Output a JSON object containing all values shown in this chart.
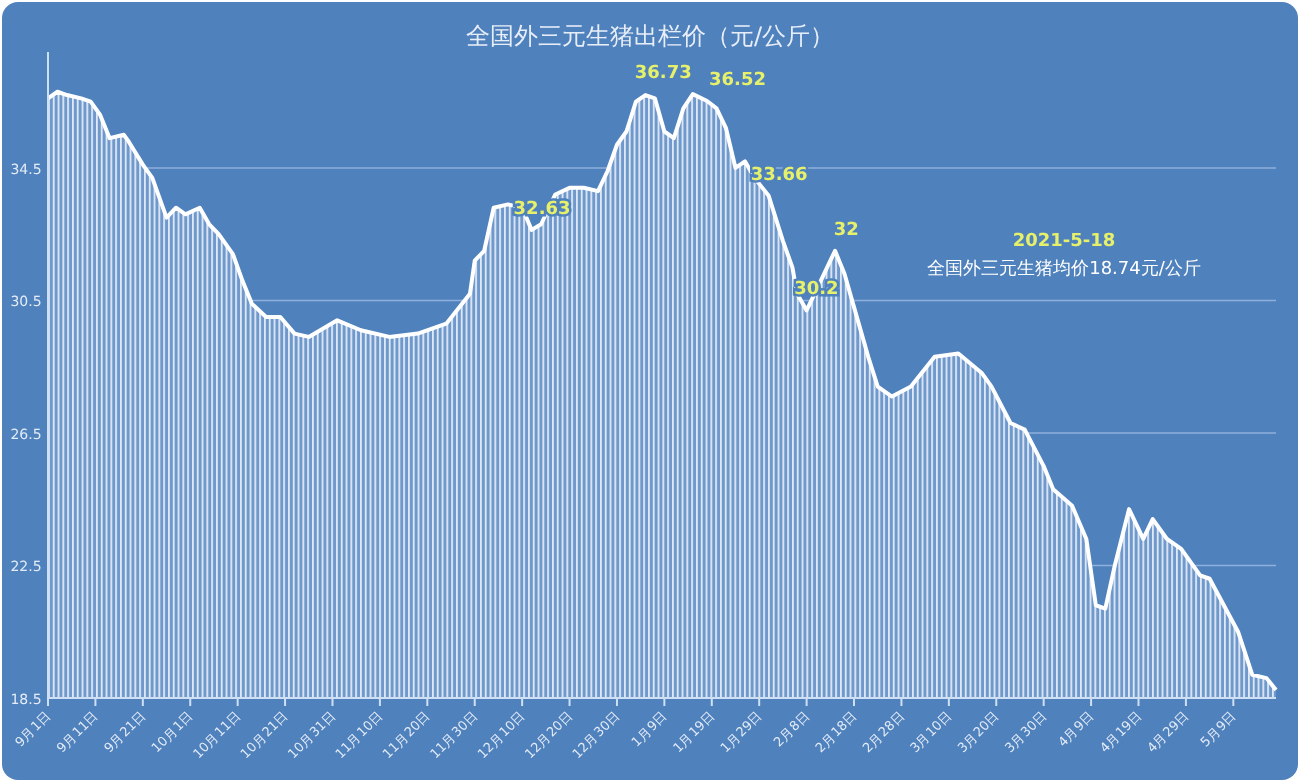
{
  "chart_data": {
    "type": "area",
    "title": "全国外三元生猪出栏价（元/公斤）",
    "x": [
      "2020-09-01",
      "2020-09-03",
      "2020-09-05",
      "2020-09-08",
      "2020-09-10",
      "2020-09-12",
      "2020-09-14",
      "2020-09-17",
      "2020-09-18",
      "2020-09-21",
      "2020-09-23",
      "2020-09-26",
      "2020-09-28",
      "2020-09-30",
      "2020-10-03",
      "2020-10-05",
      "2020-10-07",
      "2020-10-10",
      "2020-10-12",
      "2020-10-14",
      "2020-10-17",
      "2020-10-20",
      "2020-10-23",
      "2020-10-26",
      "2020-11-01",
      "2020-11-06",
      "2020-11-12",
      "2020-11-18",
      "2020-11-24",
      "2020-11-29",
      "2020-11-30",
      "2020-12-02",
      "2020-12-04",
      "2020-12-07",
      "2020-12-10",
      "2020-12-12",
      "2020-12-14",
      "2020-12-17",
      "2020-12-20",
      "2020-12-23",
      "2020-12-26",
      "2020-12-28",
      "2020-12-30",
      "2021-01-01",
      "2021-01-03",
      "2021-01-05",
      "2021-01-07",
      "2021-01-09",
      "2021-01-11",
      "2021-01-13",
      "2021-01-15",
      "2021-01-18",
      "2021-01-20",
      "2021-01-22",
      "2021-01-24",
      "2021-01-26",
      "2021-01-28",
      "2021-01-31",
      "2021-02-03",
      "2021-02-05",
      "2021-02-06",
      "2021-02-08",
      "2021-02-11",
      "2021-02-14",
      "2021-02-16",
      "2021-02-18",
      "2021-02-21",
      "2021-02-23",
      "2021-02-26",
      "2021-03-02",
      "2021-03-07",
      "2021-03-12",
      "2021-03-17",
      "2021-03-19",
      "2021-03-23",
      "2021-03-26",
      "2021-03-30",
      "2021-04-01",
      "2021-04-05",
      "2021-04-08",
      "2021-04-10",
      "2021-04-12",
      "2021-04-14",
      "2021-04-17",
      "2021-04-20",
      "2021-04-22",
      "2021-04-25",
      "2021-04-28",
      "2021-05-02",
      "2021-05-04",
      "2021-05-07",
      "2021-05-10",
      "2021-05-13",
      "2021-05-16",
      "2021-05-18"
    ],
    "series": [
      {
        "color": "#ffffff",
        "values": [
          36.6,
          36.8,
          36.7,
          36.6,
          36.5,
          36.1,
          35.4,
          35.5,
          35.3,
          34.6,
          34.2,
          33.0,
          33.3,
          33.1,
          33.3,
          32.8,
          32.5,
          31.9,
          31.1,
          30.4,
          30.0,
          30.0,
          29.5,
          29.4,
          29.9,
          29.6,
          29.4,
          29.5,
          29.8,
          30.7,
          31.7,
          32.0,
          33.3,
          33.4,
          33.3,
          32.63,
          32.8,
          33.7,
          33.9,
          33.9,
          33.8,
          34.4,
          35.2,
          35.6,
          36.5,
          36.7,
          36.6,
          35.6,
          35.4,
          36.3,
          36.73,
          36.52,
          36.3,
          35.7,
          34.5,
          34.7,
          34.2,
          33.66,
          32.3,
          31.5,
          30.7,
          30.2,
          31.1,
          32,
          31.3,
          30.3,
          28.8,
          27.9,
          27.6,
          27.9,
          28.8,
          28.9,
          28.3,
          27.9,
          26.8,
          26.6,
          25.5,
          24.8,
          24.3,
          23.3,
          21.3,
          21.2,
          22.5,
          24.2,
          23.3,
          23.9,
          23.3,
          23.0,
          22.2,
          22.1,
          21.3,
          20.5,
          19.2,
          19.1,
          18.74
        ]
      }
    ],
    "xlim": [
      "2020-09-01",
      "2021-05-18"
    ],
    "xticks": [
      {
        "value": "2020-09-01",
        "label": "9月1日"
      },
      {
        "value": "2020-09-11",
        "label": "9月11日"
      },
      {
        "value": "2020-09-21",
        "label": "9月21日"
      },
      {
        "value": "2020-10-01",
        "label": "10月1日"
      },
      {
        "value": "2020-10-11",
        "label": "10月11日"
      },
      {
        "value": "2020-10-21",
        "label": "10月21日"
      },
      {
        "value": "2020-10-31",
        "label": "10月31日"
      },
      {
        "value": "2020-11-10",
        "label": "11月10日"
      },
      {
        "value": "2020-11-20",
        "label": "11月20日"
      },
      {
        "value": "2020-11-30",
        "label": "11月30日"
      },
      {
        "value": "2020-12-10",
        "label": "12月10日"
      },
      {
        "value": "2020-12-20",
        "label": "12月20日"
      },
      {
        "value": "2020-12-30",
        "label": "12月30日"
      },
      {
        "value": "2021-01-09",
        "label": "1月9日"
      },
      {
        "value": "2021-01-19",
        "label": "1月19日"
      },
      {
        "value": "2021-01-29",
        "label": "1月29日"
      },
      {
        "value": "2021-02-08",
        "label": "2月8日"
      },
      {
        "value": "2021-02-18",
        "label": "2月18日"
      },
      {
        "value": "2021-02-28",
        "label": "2月28日"
      },
      {
        "value": "2021-03-10",
        "label": "3月10日"
      },
      {
        "value": "2021-03-20",
        "label": "3月20日"
      },
      {
        "value": "2021-03-30",
        "label": "3月30日"
      },
      {
        "value": "2021-04-09",
        "label": "4月9日"
      },
      {
        "value": "2021-04-19",
        "label": "4月19日"
      },
      {
        "value": "2021-04-29",
        "label": "4月29日"
      },
      {
        "value": "2021-05-09",
        "label": "5月9日"
      }
    ],
    "ylim": [
      18.5,
      38
    ],
    "yticks": [
      18.5,
      22.5,
      26.5,
      30.5,
      34.5
    ],
    "grid": "y",
    "annotations": [
      {
        "text": "32.63",
        "x": "2020-12-12",
        "y": 32.63
      },
      {
        "text": "36.73",
        "x": "2021-01-15",
        "y": 36.73
      },
      {
        "text": "36.52",
        "x": "2021-01-18",
        "y": 36.52
      },
      {
        "text": "33.66",
        "x": "2021-01-31",
        "y": 33.66
      },
      {
        "text": "32",
        "x": "2021-02-14",
        "y": 32
      },
      {
        "text": "30.2",
        "x": "2021-02-08",
        "y": 30.2
      },
      "2021-5-18",
      "全国外三元生猪均价18.74元/公斤"
    ]
  }
}
